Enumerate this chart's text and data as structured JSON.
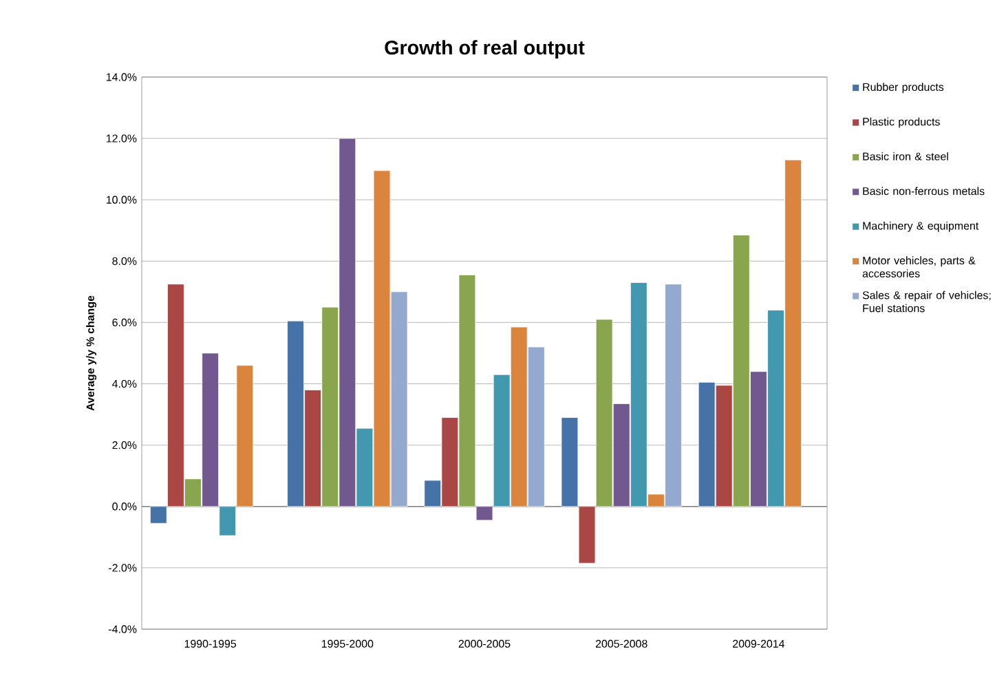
{
  "chart_data": {
    "type": "bar",
    "title": "Growth of real output",
    "ylabel": "Average y/y % change",
    "categories": [
      "1990-1995",
      "1995-2000",
      "2000-2005",
      "2005-2008",
      "2009-2014"
    ],
    "series": [
      {
        "name": "Rubber products",
        "color": "#4572a7",
        "values": [
          -0.55,
          6.05,
          0.85,
          2.9,
          4.05
        ]
      },
      {
        "name": "Plastic products",
        "color": "#aa4643",
        "values": [
          7.25,
          3.8,
          2.9,
          -1.85,
          3.95
        ]
      },
      {
        "name": "Basic iron & steel",
        "color": "#89a54e",
        "values": [
          0.9,
          6.5,
          7.55,
          6.1,
          8.85
        ]
      },
      {
        "name": "Basic non-ferrous metals",
        "color": "#71588f",
        "values": [
          5.0,
          12.0,
          -0.45,
          3.35,
          4.4
        ]
      },
      {
        "name": "Machinery & equipment",
        "color": "#4198af",
        "values": [
          -0.95,
          2.55,
          4.3,
          7.3,
          6.4
        ]
      },
      {
        "name": "Motor vehicles, parts & accessories",
        "color": "#db843d",
        "values": [
          4.6,
          10.95,
          5.85,
          0.4,
          11.3
        ]
      },
      {
        "name": "Sales & repair of vehicles; Fuel stations",
        "color": "#93a9cf",
        "values": [
          null,
          7.0,
          5.2,
          7.25,
          null
        ]
      }
    ],
    "ylim": [
      -4,
      14
    ],
    "yticks": [
      {
        "value": -4,
        "label": "-4.0%"
      },
      {
        "value": -2,
        "label": "-2.0%"
      },
      {
        "value": 0,
        "label": "0.0%"
      },
      {
        "value": 2,
        "label": "2.0%"
      },
      {
        "value": 4,
        "label": "4.0%"
      },
      {
        "value": 6,
        "label": "6.0%"
      },
      {
        "value": 8,
        "label": "8.0%"
      },
      {
        "value": 10,
        "label": "10.0%"
      },
      {
        "value": 12,
        "label": "12.0%"
      },
      {
        "value": 14,
        "label": "14.0%"
      }
    ],
    "grid": "y",
    "legend": "right"
  }
}
